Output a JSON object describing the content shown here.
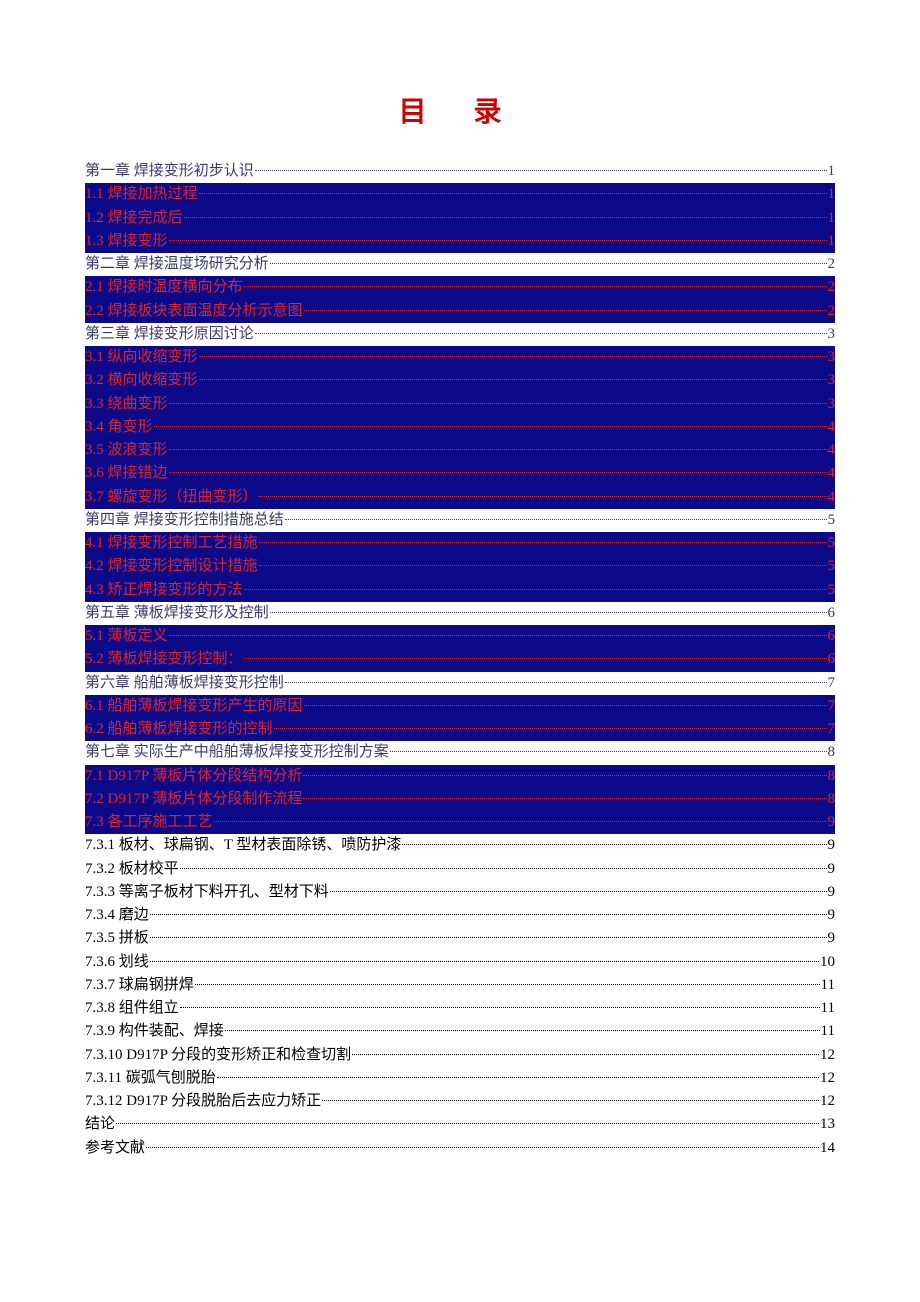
{
  "title": "目 录",
  "colors": {
    "title": "#cc0000",
    "highlight_bg": "#0d0a8a",
    "highlight_text": "#d8262e",
    "normal_text": "#3a3a6a",
    "black_text": "#000000",
    "page_bg": "#ffffff"
  },
  "typography": {
    "title_fontsize": 28,
    "title_letterspacing": 20,
    "body_fontsize": 15,
    "line_height": 1.55,
    "font_family": "SimSun"
  },
  "entries": [
    {
      "text": "第一章  焊接变形初步认识",
      "page": "1",
      "style": "normal"
    },
    {
      "text": "1.1 焊接加热过程",
      "page": "1",
      "style": "hl"
    },
    {
      "text": "1.2 焊接完成后",
      "page": "1",
      "style": "hl"
    },
    {
      "text": "1.3 焊接变形",
      "page": "1",
      "style": "hl"
    },
    {
      "text": "第二章  焊接温度场研究分析",
      "page": "2",
      "style": "normal"
    },
    {
      "text": "2.1 焊接时温度横向分布",
      "page": "2",
      "style": "hl"
    },
    {
      "text": "2.2 焊接板块表面温度分析示意图",
      "page": "2",
      "style": "hl"
    },
    {
      "text": "第三章  焊接变形原因讨论",
      "page": "3",
      "style": "normal"
    },
    {
      "text": "3.1 纵向收缩变形",
      "page": "3",
      "style": "hl"
    },
    {
      "text": "3.2 横向收缩变形",
      "page": "3",
      "style": "hl"
    },
    {
      "text": "3.3 绕曲变形",
      "page": "3",
      "style": "hl"
    },
    {
      "text": "3.4 角变形",
      "page": "4",
      "style": "hl"
    },
    {
      "text": "3.5 波浪变形",
      "page": "4",
      "style": "hl"
    },
    {
      "text": "3.6 焊接错边",
      "page": "4",
      "style": "hl"
    },
    {
      "text": "3.7 螺旋变形（扭曲变形）",
      "page": "4",
      "style": "hl"
    },
    {
      "text": "第四章  焊接变形控制措施总结",
      "page": "5",
      "style": "normal"
    },
    {
      "text": "4.1 焊接变形控制工艺措施",
      "page": "5",
      "style": "hl"
    },
    {
      "text": "4.2 焊接变形控制设计措施",
      "page": "5",
      "style": "hl"
    },
    {
      "text": "4.3 矫正焊接变形的方法",
      "page": "5",
      "style": "hl"
    },
    {
      "text": "第五章  薄板焊接变形及控制",
      "page": "6",
      "style": "normal"
    },
    {
      "text": "5.1 薄板定义",
      "page": "6",
      "style": "hl"
    },
    {
      "text": "5.2 薄板焊接变形控制：",
      "page": "6",
      "style": "hl"
    },
    {
      "text": "第六章  船舶薄板焊接变形控制",
      "page": "7",
      "style": "normal"
    },
    {
      "text": "6.1 船舶薄板焊接变形产生的原因",
      "page": "7",
      "style": "hl"
    },
    {
      "text": "6.2 船舶薄板焊接变形的控制",
      "page": "7",
      "style": "hl"
    },
    {
      "text": "第七章  实际生产中船舶薄板焊接变形控制方案",
      "page": "8",
      "style": "normal"
    },
    {
      "text": "7.1  D917P 薄板片体分段结构分析",
      "page": "8",
      "style": "hl"
    },
    {
      "text": "7.2  D917P 薄板片体分段制作流程",
      "page": "8",
      "style": "hl"
    },
    {
      "text": "7.3  各工序施工工艺",
      "page": "9",
      "style": "hl"
    },
    {
      "text": "7.3.1  板材、球扁钢、T 型材表面除锈、喷防护漆",
      "page": "9",
      "style": "black"
    },
    {
      "text": "7.3.2  板材校平",
      "page": "9",
      "style": "black"
    },
    {
      "text": "7.3.3  等离子板材下料开孔、型材下料",
      "page": "9",
      "style": "black"
    },
    {
      "text": "7.3.4  磨边",
      "page": "9",
      "style": "black"
    },
    {
      "text": "7.3.5  拼板",
      "page": "9",
      "style": "black"
    },
    {
      "text": "7.3.6 划线",
      "page": "10",
      "style": "black"
    },
    {
      "text": "7.3.7  球扁钢拼焊",
      "page": "11",
      "style": "black"
    },
    {
      "text": "7.3.8 组件组立",
      "page": "11",
      "style": "black"
    },
    {
      "text": "7.3.9 构件装配、焊接",
      "page": "11",
      "style": "black"
    },
    {
      "text": "7.3.10 D917P 分段的变形矫正和检查切割 ",
      "page": "12",
      "style": "black"
    },
    {
      "text": "7.3.11 碳弧气刨脱胎",
      "page": "12",
      "style": "black"
    },
    {
      "text": "7.3.12 D917P 分段脱胎后去应力矫正 ",
      "page": "12",
      "style": "black"
    },
    {
      "text": "结论",
      "page": "13",
      "style": "black"
    },
    {
      "text": "参考文献",
      "page": "14",
      "style": "black"
    }
  ]
}
